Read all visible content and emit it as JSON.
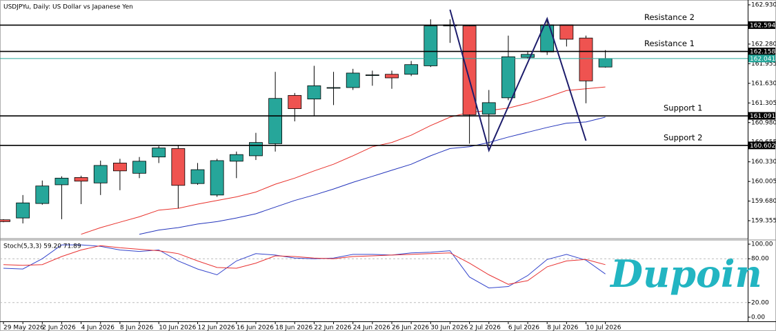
{
  "chart_data": [
    {
      "type": "candlestick",
      "title": "USDJPYu, Daily:  US Dollar vs Japanese Yen",
      "categories": [
        "29 May 2026",
        null,
        "2 Jun 2026",
        null,
        "4 Jun 2026",
        null,
        "8 Jun 2026",
        null,
        "10 Jun 2026",
        null,
        "12 Jun 2026",
        null,
        "16 Jun 2026",
        null,
        "18 Jun 2026",
        null,
        "22 Jun 2026",
        null,
        "24 Jun 2026",
        null,
        "26 Jun 2026",
        null,
        "30 Jun 2026",
        null,
        "2 Jul 2026",
        null,
        "6 Jul 2026",
        null,
        "8 Jul 2026",
        null,
        "10 Jul 2026",
        null
      ],
      "open": [
        159.37,
        159.4,
        159.64,
        159.95,
        160.07,
        159.98,
        160.31,
        160.14,
        160.41,
        160.55,
        159.97,
        159.78,
        160.34,
        160.43,
        160.63,
        161.43,
        161.37,
        161.55,
        161.56,
        161.76,
        161.78,
        161.78,
        161.92,
        162.58,
        162.58,
        161.12,
        161.39,
        162.06,
        162.15,
        162.6,
        162.38,
        161.9
      ],
      "high": [
        159.38,
        159.78,
        160.02,
        160.09,
        160.1,
        160.35,
        160.38,
        160.41,
        160.59,
        160.6,
        160.31,
        160.38,
        160.5,
        160.81,
        161.82,
        161.47,
        161.92,
        161.82,
        161.87,
        161.84,
        161.84,
        162.0,
        162.69,
        162.69,
        162.59,
        161.52,
        162.42,
        162.15,
        162.67,
        162.6,
        162.42,
        162.18
      ],
      "low": [
        159.33,
        159.31,
        159.62,
        159.38,
        159.63,
        159.78,
        159.86,
        160.06,
        160.31,
        159.56,
        159.95,
        159.75,
        160.06,
        160.36,
        160.5,
        161.0,
        161.09,
        161.27,
        161.52,
        161.59,
        161.54,
        161.75,
        161.9,
        162.3,
        160.63,
        160.61,
        161.35,
        162.04,
        162.1,
        162.24,
        161.3,
        161.89
      ],
      "close": [
        159.34,
        159.65,
        159.93,
        160.06,
        160.01,
        160.27,
        160.18,
        160.34,
        160.56,
        159.94,
        160.2,
        160.35,
        160.45,
        160.65,
        161.38,
        161.21,
        161.59,
        161.56,
        161.8,
        161.77,
        161.72,
        161.94,
        162.58,
        162.6,
        161.11,
        161.31,
        162.07,
        162.11,
        162.6,
        162.36,
        161.67,
        162.041
      ],
      "up_color": "#26a69a",
      "down_color": "#ef5350",
      "series": [
        {
          "color": "#e8302a",
          "values": [
            null,
            null,
            null,
            null,
            159.13,
            159.24,
            159.33,
            159.42,
            159.53,
            159.56,
            159.63,
            159.69,
            159.75,
            159.83,
            159.96,
            160.06,
            160.18,
            160.29,
            160.43,
            160.58,
            160.65,
            160.77,
            160.93,
            161.07,
            161.15,
            161.18,
            161.22,
            161.3,
            161.4,
            161.51,
            161.54,
            161.57
          ]
        },
        {
          "color": "#2233bb",
          "values": [
            null,
            null,
            null,
            null,
            null,
            null,
            null,
            159.13,
            159.2,
            159.24,
            159.3,
            159.34,
            159.4,
            159.47,
            159.58,
            159.69,
            159.78,
            159.88,
            159.99,
            160.09,
            160.19,
            160.29,
            160.43,
            160.55,
            160.58,
            160.65,
            160.74,
            160.82,
            160.9,
            160.97,
            160.99,
            161.07
          ]
        }
      ],
      "levels": [
        {
          "name": "Resistance 2",
          "value": 162.594
        },
        {
          "name": "Resistance 1",
          "value": 162.158
        },
        {
          "name": "Support 1",
          "value": 161.091
        },
        {
          "name": "Support 2",
          "value": 160.602
        }
      ],
      "current_price": 162.041,
      "current_color": "#26a69a",
      "pattern": {
        "color": "#1c1c6b",
        "x": [
          23,
          25,
          28,
          30
        ],
        "y": [
          162.85,
          160.52,
          162.7,
          160.68
        ]
      },
      "ylim": [
        159.07,
        163.01
      ],
      "yticks": [
        {
          "value": 162.93,
          "label": "162.930"
        },
        {
          "value": 162.28,
          "label": "162.280"
        },
        161.955,
        {
          "value": 161.63,
          "label": "161.630"
        },
        161.305,
        {
          "value": 160.98,
          "label": "160.980"
        },
        160.655,
        {
          "value": 160.33,
          "label": "160.330"
        },
        160.005,
        {
          "value": 159.68,
          "label": "159.680"
        },
        159.355
      ]
    },
    {
      "type": "line",
      "title": "Stoch(5,3,3) 59.20 71.89",
      "series": [
        {
          "color": "#3344cc",
          "values": [
            67,
            66,
            80,
            99,
            99,
            97,
            92,
            90,
            92,
            77,
            66,
            58,
            77,
            87,
            85,
            81,
            80,
            81,
            86,
            86,
            85,
            88,
            89,
            91,
            55,
            40,
            42,
            57,
            79,
            86,
            78,
            59.2
          ]
        },
        {
          "color": "#e83030",
          "values": [
            72,
            71,
            72,
            83,
            92,
            98,
            95,
            93,
            91,
            87,
            77,
            68,
            67,
            74,
            84,
            83,
            81,
            80,
            83,
            84,
            85,
            86,
            87,
            88,
            74,
            58,
            45,
            50,
            69,
            77,
            79,
            71.89
          ]
        }
      ],
      "levels": [
        80,
        20
      ],
      "ylim": [
        -5.7,
        105.7
      ],
      "yticks": [
        {
          "value": 100,
          "label": "100.00"
        },
        {
          "value": 80,
          "label": "80.00"
        },
        {
          "value": 20,
          "label": "20.00"
        },
        {
          "value": 0,
          "label": "0.00"
        }
      ]
    }
  ],
  "logo": "Dupoin"
}
